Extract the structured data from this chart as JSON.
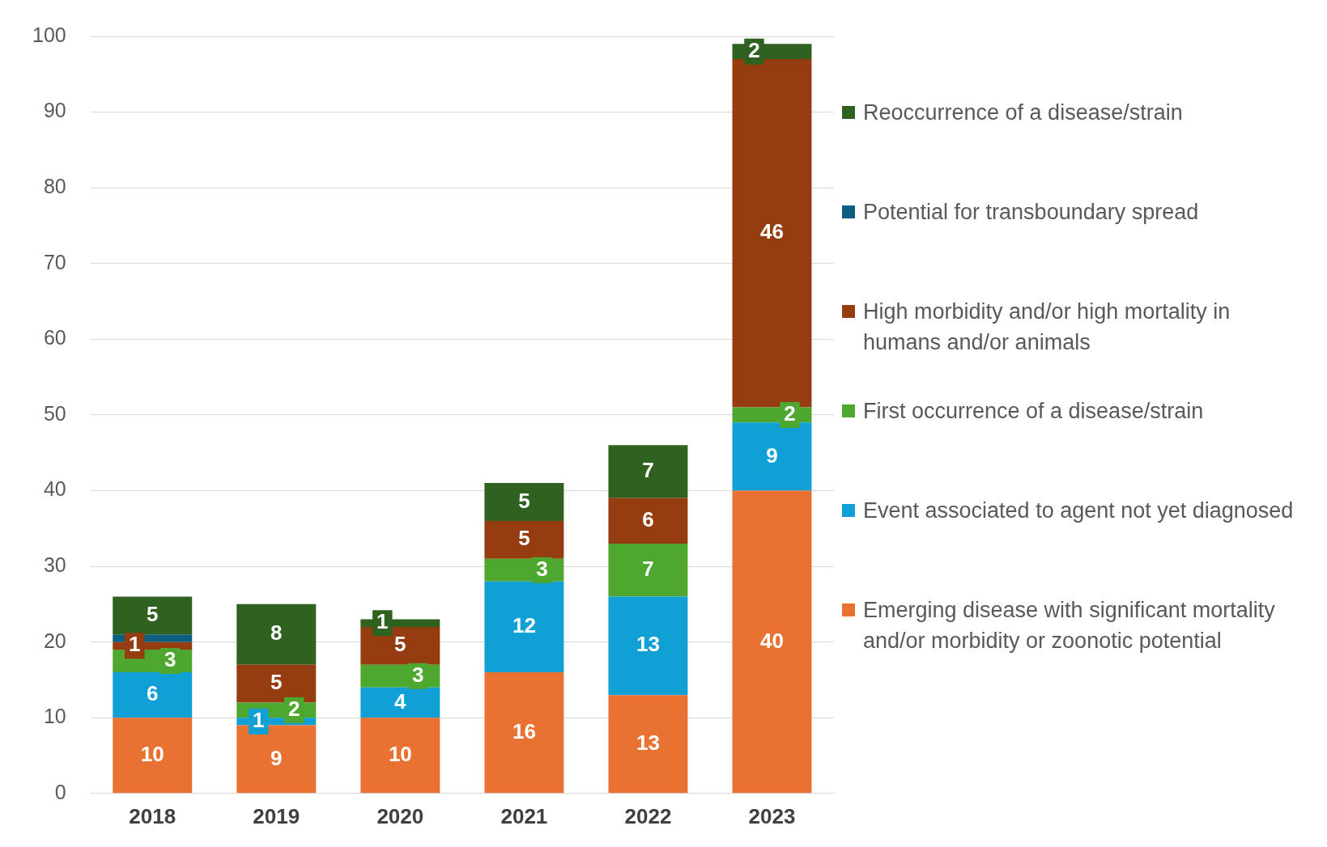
{
  "chart_data": {
    "type": "bar",
    "stacked": true,
    "categories": [
      "2018",
      "2019",
      "2020",
      "2021",
      "2022",
      "2023"
    ],
    "series": [
      {
        "name": "Emerging disease with significant mortality and/or morbidity or zoonotic potential",
        "color": "#e97132",
        "values": [
          10,
          9,
          10,
          16,
          13,
          40
        ],
        "value_labels": [
          "10",
          "9",
          "10",
          "16",
          "13",
          "40"
        ]
      },
      {
        "name": "Event associated to agent not yet diagnosed",
        "color": "#10a0d6",
        "values": [
          6,
          1,
          4,
          12,
          13,
          9
        ],
        "value_labels": [
          "6",
          "1",
          "4",
          "12",
          "13",
          "9"
        ]
      },
      {
        "name": "First occurrence of a disease/strain",
        "color": "#4ea72e",
        "values": [
          3,
          2,
          3,
          3,
          7,
          2
        ],
        "value_labels": [
          "3",
          "2",
          "3",
          "3",
          "7",
          "2"
        ]
      },
      {
        "name": "High morbidity and/or high mortality in humans and/or animals",
        "color": "#953c10",
        "values": [
          1,
          5,
          5,
          5,
          6,
          46
        ],
        "value_labels": [
          "1",
          "5",
          "5",
          "5",
          "6",
          "46"
        ]
      },
      {
        "name": "Potential for transboundary spread",
        "color": "#0c5f7e",
        "values": [
          1,
          0,
          0,
          0,
          0,
          0
        ],
        "value_labels": [
          null,
          null,
          null,
          null,
          null,
          null
        ]
      },
      {
        "name": "Reoccurrence of a disease/strain",
        "color": "#2f6120",
        "values": [
          5,
          8,
          1,
          5,
          7,
          2
        ],
        "value_labels": [
          "5",
          "8",
          "1",
          "5",
          "7",
          "2"
        ]
      }
    ],
    "ylim": [
      0,
      100
    ],
    "yticks": [
      0,
      10,
      20,
      30,
      40,
      50,
      60,
      70,
      80,
      90,
      100
    ],
    "grid": "y",
    "legend": "right"
  }
}
